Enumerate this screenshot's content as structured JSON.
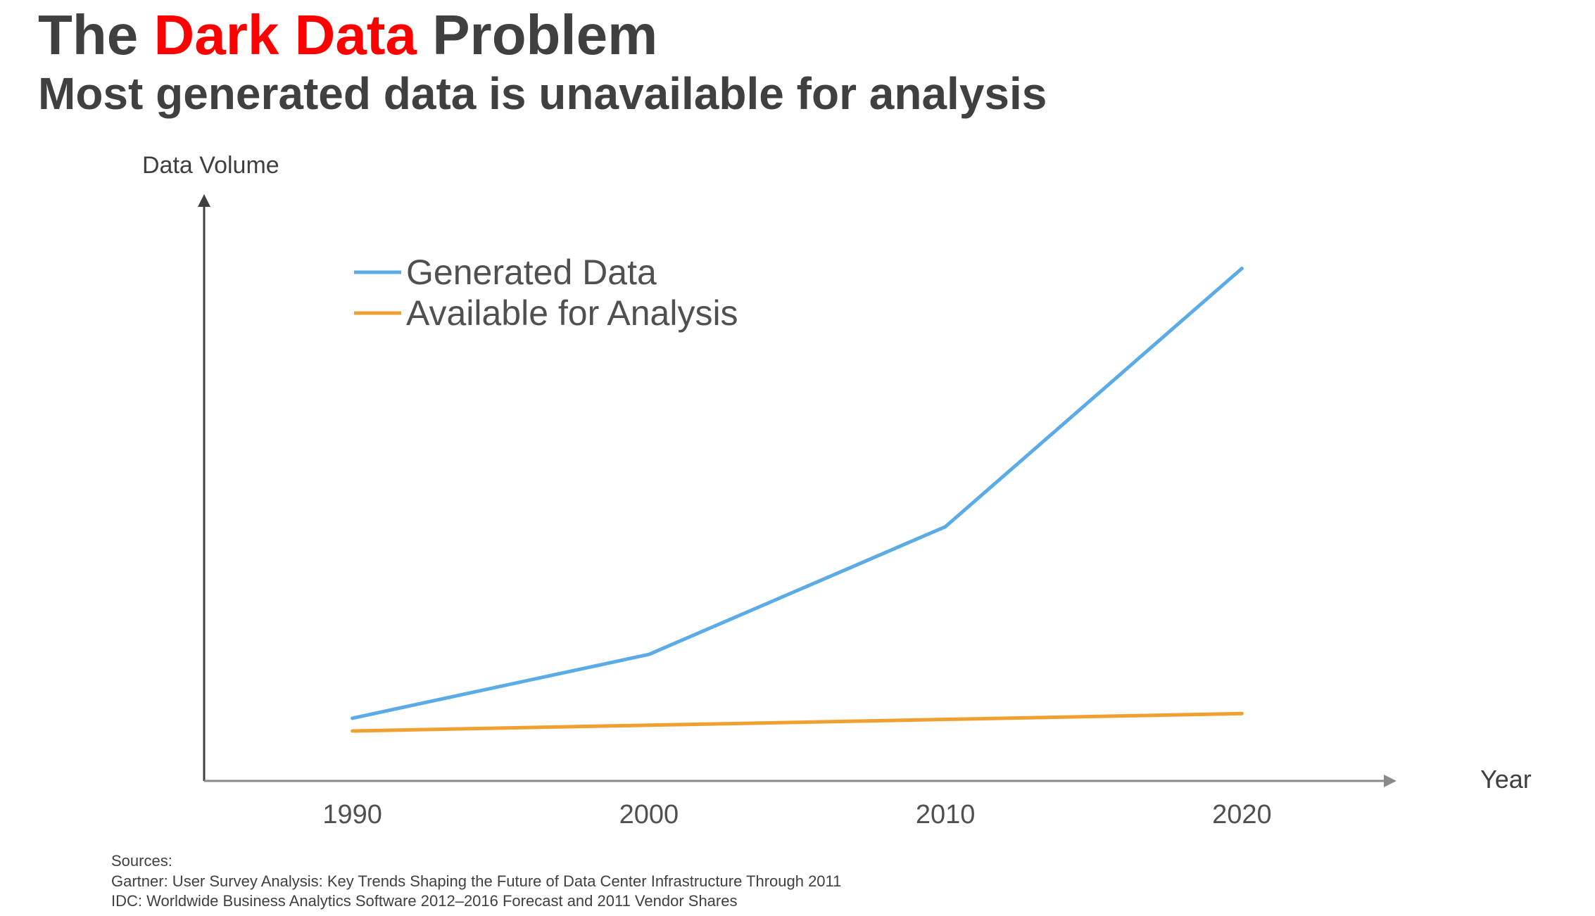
{
  "header": {
    "title_prefix": "The ",
    "title_accent": "Dark Data",
    "title_suffix": " Problem",
    "subtitle": "Most generated data is unavailable for analysis"
  },
  "colors": {
    "accent": "#ff0000",
    "text": "#404040",
    "generated": "#5aabe6",
    "available": "#f0a030",
    "axis": "#404040"
  },
  "chart_data": {
    "type": "line",
    "xlabel": "Year",
    "ylabel": "Data Volume",
    "x": [
      1990,
      2000,
      2010,
      2020
    ],
    "xlim": [
      1985,
      2025
    ],
    "ylim": [
      0,
      100
    ],
    "y_ticks_shown": false,
    "grid": false,
    "legend_position": "top-left",
    "series": [
      {
        "name": "Generated Data",
        "color": "#5aabe6",
        "values": [
          10.8,
          21.8,
          43.8,
          88.3
        ]
      },
      {
        "name": "Available for Analysis",
        "color": "#f0a030",
        "values": [
          8.6,
          9.6,
          10.6,
          11.6
        ]
      }
    ]
  },
  "sources": {
    "heading": "Sources:",
    "lines": [
      "Gartner: User Survey Analysis: Key Trends Shaping the Future of Data Center Infrastructure Through 2011",
      "IDC: Worldwide Business Analytics Software 2012–2016 Forecast and 2011 Vendor Shares"
    ]
  }
}
